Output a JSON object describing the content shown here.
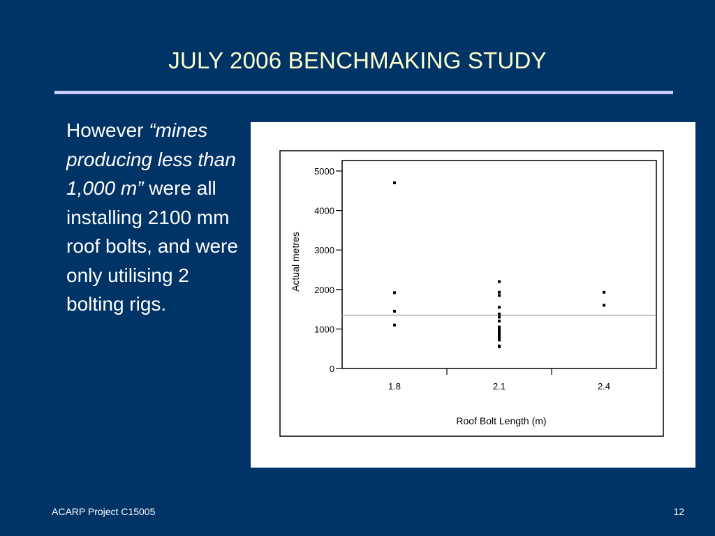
{
  "slide": {
    "title": "JULY 2006 BENCHMAKING STUDY",
    "body": {
      "intro": "However ",
      "quote": "“mines producing less than 1,000 m”",
      "rest": " were all installing 2100 mm roof bolts, and were only utilising 2 bolting rigs."
    },
    "footer_left": "ACARP Project C15005",
    "page_number": "12"
  },
  "colors": {
    "background": "#003366",
    "title": "#ffffcc",
    "rule": "#ccccff",
    "reference_line": "#aaaaaa"
  },
  "chart_data": {
    "type": "scatter",
    "title": "",
    "xlabel": "Roof Bolt Length (m)",
    "ylabel": "Actual metres",
    "categories": [
      "1.8",
      "2.1",
      "2.4"
    ],
    "yticks": [
      0,
      1000,
      2000,
      3000,
      4000,
      5000
    ],
    "ytick_labels": [
      "0",
      "1000",
      "2000",
      "3000",
      "4000",
      "5000"
    ],
    "ylim": [
      0,
      5000
    ],
    "grid": false,
    "reference_line": 1350,
    "points": [
      {
        "x": "1.8",
        "y": 4700
      },
      {
        "x": "1.8",
        "y": 1920
      },
      {
        "x": "1.8",
        "y": 1450
      },
      {
        "x": "1.8",
        "y": 1100
      },
      {
        "x": "2.1",
        "y": 2200
      },
      {
        "x": "2.1",
        "y": 1930
      },
      {
        "x": "2.1",
        "y": 1850
      },
      {
        "x": "2.1",
        "y": 1550
      },
      {
        "x": "2.1",
        "y": 1380
      },
      {
        "x": "2.1",
        "y": 1300
      },
      {
        "x": "2.1",
        "y": 1200
      },
      {
        "x": "2.1",
        "y": 1050
      },
      {
        "x": "2.1",
        "y": 1000
      },
      {
        "x": "2.1",
        "y": 960
      },
      {
        "x": "2.1",
        "y": 920
      },
      {
        "x": "2.1",
        "y": 880
      },
      {
        "x": "2.1",
        "y": 840
      },
      {
        "x": "2.1",
        "y": 800
      },
      {
        "x": "2.1",
        "y": 760
      },
      {
        "x": "2.1",
        "y": 720
      },
      {
        "x": "2.1",
        "y": 570
      },
      {
        "x": "2.1",
        "y": 550
      },
      {
        "x": "2.4",
        "y": 1930
      },
      {
        "x": "2.4",
        "y": 1600
      }
    ]
  }
}
